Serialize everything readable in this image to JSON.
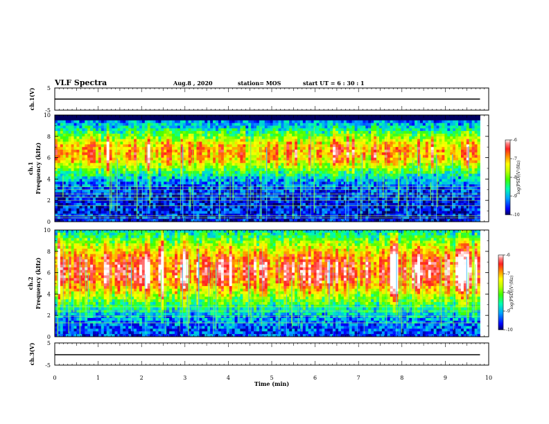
{
  "header": {
    "title": "VLF Spectra",
    "date": "Aug.8  , 2020",
    "station": "station= MOS",
    "start_ut": "start UT =  6 : 30 : 1"
  },
  "chart_data": [
    {
      "type": "line",
      "panel": "ch1-waveform",
      "ylabel": "ch.1(V)",
      "ylim": [
        -5,
        5
      ],
      "yticks": [
        "5",
        "-5"
      ],
      "xlim": [
        0,
        10
      ],
      "series": [
        {
          "x": [
            0,
            9.8
          ],
          "y": [
            0,
            0
          ]
        }
      ]
    },
    {
      "type": "heatmap",
      "panel": "ch1-spectrogram",
      "ylabel": "ch.1\nFrequency (kHz)",
      "ylim": [
        0,
        10
      ],
      "yticks": [
        "0",
        "2",
        "4",
        "6",
        "8",
        "10"
      ],
      "xlim": [
        0,
        10
      ],
      "data_xmax": 9.8,
      "band_center_khz": 6.5,
      "band_half_width_khz": 2.2,
      "band_peak_log": -7.0,
      "background_log": -9.6,
      "upper_limit_khz": 9.4,
      "lines_khz": [
        0.35,
        0.55,
        1.5,
        2.0,
        2.3,
        2.6,
        3.0,
        3.3
      ],
      "colorbar": {
        "label": "log(PSD)(V²/Hz)",
        "ticks": [
          "-6",
          "-7",
          "-8",
          "-9",
          "-10"
        ],
        "range": [
          -10,
          -6
        ]
      }
    },
    {
      "type": "heatmap",
      "panel": "ch2-spectrogram",
      "ylabel": "ch.2\nFrequency (kHz)",
      "ylim": [
        0,
        10
      ],
      "yticks": [
        "0",
        "2",
        "4",
        "6",
        "8",
        "10"
      ],
      "xlim": [
        0,
        10
      ],
      "data_xmax": 9.8,
      "band_center_khz": 6.2,
      "band_half_width_khz": 3.2,
      "band_peak_log": -6.4,
      "background_log": -9.5,
      "upper_limit_khz": 10,
      "lines_khz": [
        1.3,
        1.9,
        2.4,
        2.8
      ],
      "colorbar": {
        "label": "log(PSD)(V²/Hz)",
        "ticks": [
          "-6",
          "-7",
          "-8",
          "-9",
          "-10"
        ],
        "range": [
          -10,
          -6
        ]
      }
    },
    {
      "type": "line",
      "panel": "ch3-waveform",
      "ylabel": "ch.3(V)",
      "ylim": [
        -5,
        5
      ],
      "yticks": [
        "5",
        "-5"
      ],
      "xlim": [
        0,
        10
      ],
      "series": [
        {
          "x": [
            0,
            9.8
          ],
          "y": [
            0,
            0
          ]
        }
      ]
    }
  ],
  "x_axis": {
    "label": "Time (min)",
    "ticks": [
      "0",
      "1",
      "2",
      "3",
      "4",
      "5",
      "6",
      "7",
      "8",
      "9",
      "10"
    ]
  },
  "colors": {
    "colormap": [
      "#000060",
      "#0000ff",
      "#00a0ff",
      "#00ffb0",
      "#40ff00",
      "#c0ff00",
      "#ffff00",
      "#ff9000",
      "#ff2020",
      "#ff8080",
      "#ffffff"
    ]
  }
}
